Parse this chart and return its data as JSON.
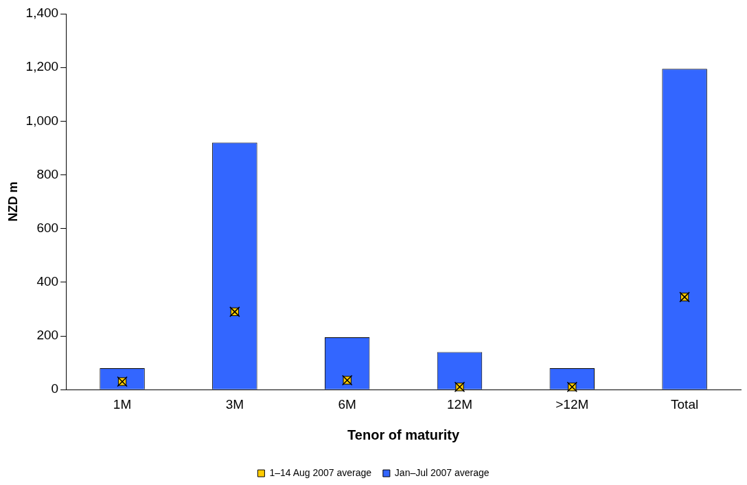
{
  "chart_data": {
    "type": "bar",
    "xlabel": "Tenor of maturity",
    "ylabel": "NZD m",
    "categories": [
      "1M",
      "3M",
      "6M",
      "12M",
      ">12M",
      "Total"
    ],
    "series": [
      {
        "name": "Jan–Jul 2007 average",
        "color": "#3366ff",
        "values": [
          80,
          920,
          195,
          140,
          80,
          1195
        ]
      },
      {
        "name": "1–14 Aug 2007 average",
        "type": "scatter",
        "marker": "square",
        "color": "#ffcc00",
        "x": [
          "1M",
          "3M",
          "6M",
          "12M",
          ">12M",
          "Total"
        ],
        "values": [
          30,
          290,
          35,
          10,
          10,
          345
        ]
      }
    ],
    "ylim": [
      0,
      1400
    ],
    "yticks": [
      {
        "value": 0,
        "label": "0"
      },
      {
        "value": 200,
        "label": "200"
      },
      {
        "value": 400,
        "label": "400"
      },
      {
        "value": 600,
        "label": "600"
      },
      {
        "value": 800,
        "label": "800"
      },
      {
        "value": 1000,
        "label": "1,000"
      },
      {
        "value": 1200,
        "label": "1,200"
      },
      {
        "value": 1400,
        "label": "1,400"
      }
    ],
    "grid": false,
    "legend": "bottom"
  }
}
